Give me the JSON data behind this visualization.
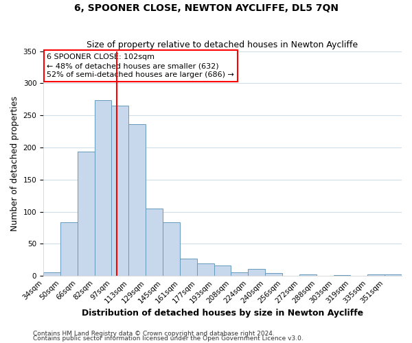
{
  "title": "6, SPOONER CLOSE, NEWTON AYCLIFFE, DL5 7QN",
  "subtitle": "Size of property relative to detached houses in Newton Aycliffe",
  "xlabel": "Distribution of detached houses by size in Newton Aycliffe",
  "ylabel": "Number of detached properties",
  "bin_labels": [
    "34sqm",
    "50sqm",
    "66sqm",
    "82sqm",
    "97sqm",
    "113sqm",
    "129sqm",
    "145sqm",
    "161sqm",
    "177sqm",
    "193sqm",
    "208sqm",
    "224sqm",
    "240sqm",
    "256sqm",
    "272sqm",
    "288sqm",
    "303sqm",
    "319sqm",
    "335sqm",
    "351sqm"
  ],
  "bar_heights": [
    6,
    84,
    194,
    274,
    265,
    236,
    105,
    84,
    27,
    20,
    16,
    6,
    11,
    5,
    0,
    2,
    0,
    1,
    0,
    2,
    2
  ],
  "bar_color": "#c8d8ec",
  "bar_edge_color": "#6699bb",
  "vline_x_bin": 4,
  "vline_color": "red",
  "annotation_title": "6 SPOONER CLOSE: 102sqm",
  "annotation_line1": "← 48% of detached houses are smaller (632)",
  "annotation_line2": "52% of semi-detached houses are larger (686) →",
  "annotation_box_color": "white",
  "annotation_box_edge_color": "red",
  "ylim": [
    0,
    350
  ],
  "yticks": [
    0,
    50,
    100,
    150,
    200,
    250,
    300,
    350
  ],
  "footer1": "Contains HM Land Registry data © Crown copyright and database right 2024.",
  "footer2": "Contains public sector information licensed under the Open Government Licence v3.0.",
  "plot_bg_color": "white",
  "fig_bg_color": "white",
  "grid_color": "#d0dce8",
  "title_fontsize": 10,
  "subtitle_fontsize": 9,
  "axis_label_fontsize": 9,
  "tick_fontsize": 7.5,
  "annotation_fontsize": 8,
  "footer_fontsize": 6.5
}
